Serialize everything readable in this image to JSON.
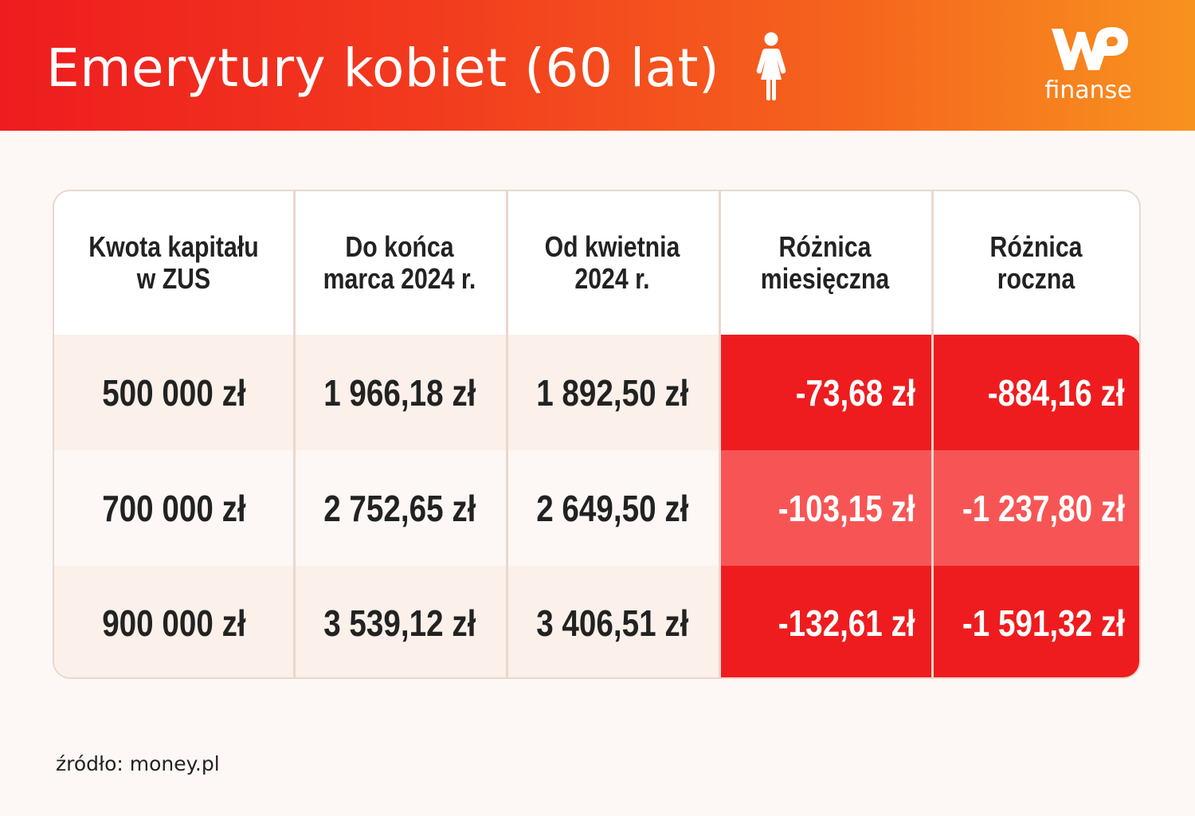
{
  "header": {
    "title": "Emerytury kobiet (60 lat)",
    "logo_text": "finanse",
    "icons": [
      "woman-icon",
      "wp-logo"
    ]
  },
  "colors": {
    "header_gradient": [
      "#ee1c1f",
      "#f8921f"
    ],
    "negative_dark": "#ee1c1f",
    "negative_light": "#f75555"
  },
  "chart_data": {
    "type": "table",
    "title": "Emerytury kobiet (60 lat)",
    "columns": [
      "Kwota kapitału\nw ZUS",
      "Do końca\nmarca 2024 r.",
      "Od kwietnia\n2024 r.",
      "Różnica\nmiesięczna",
      "Różnica\nroczna"
    ],
    "rows": [
      [
        "500 000 zł",
        "1 966,18 zł",
        "1 892,50 zł",
        "-73,68 zł",
        "-884,16 zł"
      ],
      [
        "700 000 zł",
        "2 752,65 zł",
        "2 649,50 zł",
        "-103,15 zł",
        "-1 237,80 zł"
      ],
      [
        "900 000 zł",
        "3 539,12 zł",
        "3 406,51 zł",
        "-132,61 zł",
        "-1 591,32 zł"
      ]
    ]
  },
  "source": "źródło: money.pl"
}
